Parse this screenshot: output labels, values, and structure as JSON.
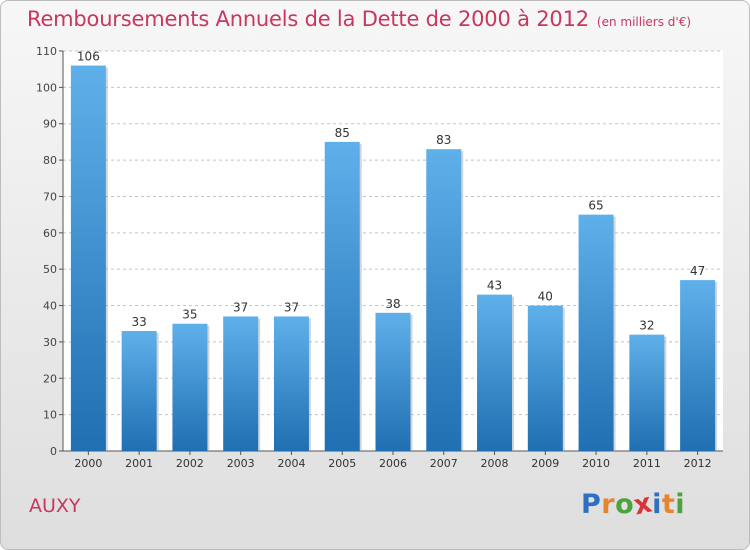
{
  "title": "Remboursements Annuels de la Dette de 2000 à 2012",
  "subtitle": "(en milliers d'€)",
  "commune": "AUXY",
  "logo": {
    "text": "Proxiti",
    "letters": [
      {
        "ch": "P",
        "color": "#2e6fbf"
      },
      {
        "ch": "r",
        "color": "#e5862f"
      },
      {
        "ch": "o",
        "color": "#4aa33b"
      },
      {
        "ch": "x",
        "color": "#d9343b"
      },
      {
        "ch": "i",
        "color": "#2e6fbf"
      },
      {
        "ch": "t",
        "color": "#e5862f"
      },
      {
        "ch": "i",
        "color": "#4aa33b"
      }
    ]
  },
  "colors": {
    "title": "#c8375e",
    "bar_top": "#5fb0ea",
    "bar_bottom": "#1f6fb2",
    "grid": "#c4c4c4",
    "axis": "#555555"
  },
  "chart_data": {
    "type": "bar",
    "categories": [
      "2000",
      "2001",
      "2002",
      "2003",
      "2004",
      "2005",
      "2006",
      "2007",
      "2008",
      "2009",
      "2010",
      "2011",
      "2012"
    ],
    "values": [
      106,
      33,
      35,
      37,
      37,
      85,
      38,
      83,
      43,
      40,
      65,
      32,
      47
    ],
    "yticks": [
      0,
      10,
      20,
      30,
      40,
      50,
      60,
      70,
      80,
      90,
      100,
      110
    ],
    "ylim": [
      0,
      110
    ],
    "grid": true,
    "data_labels": true
  }
}
